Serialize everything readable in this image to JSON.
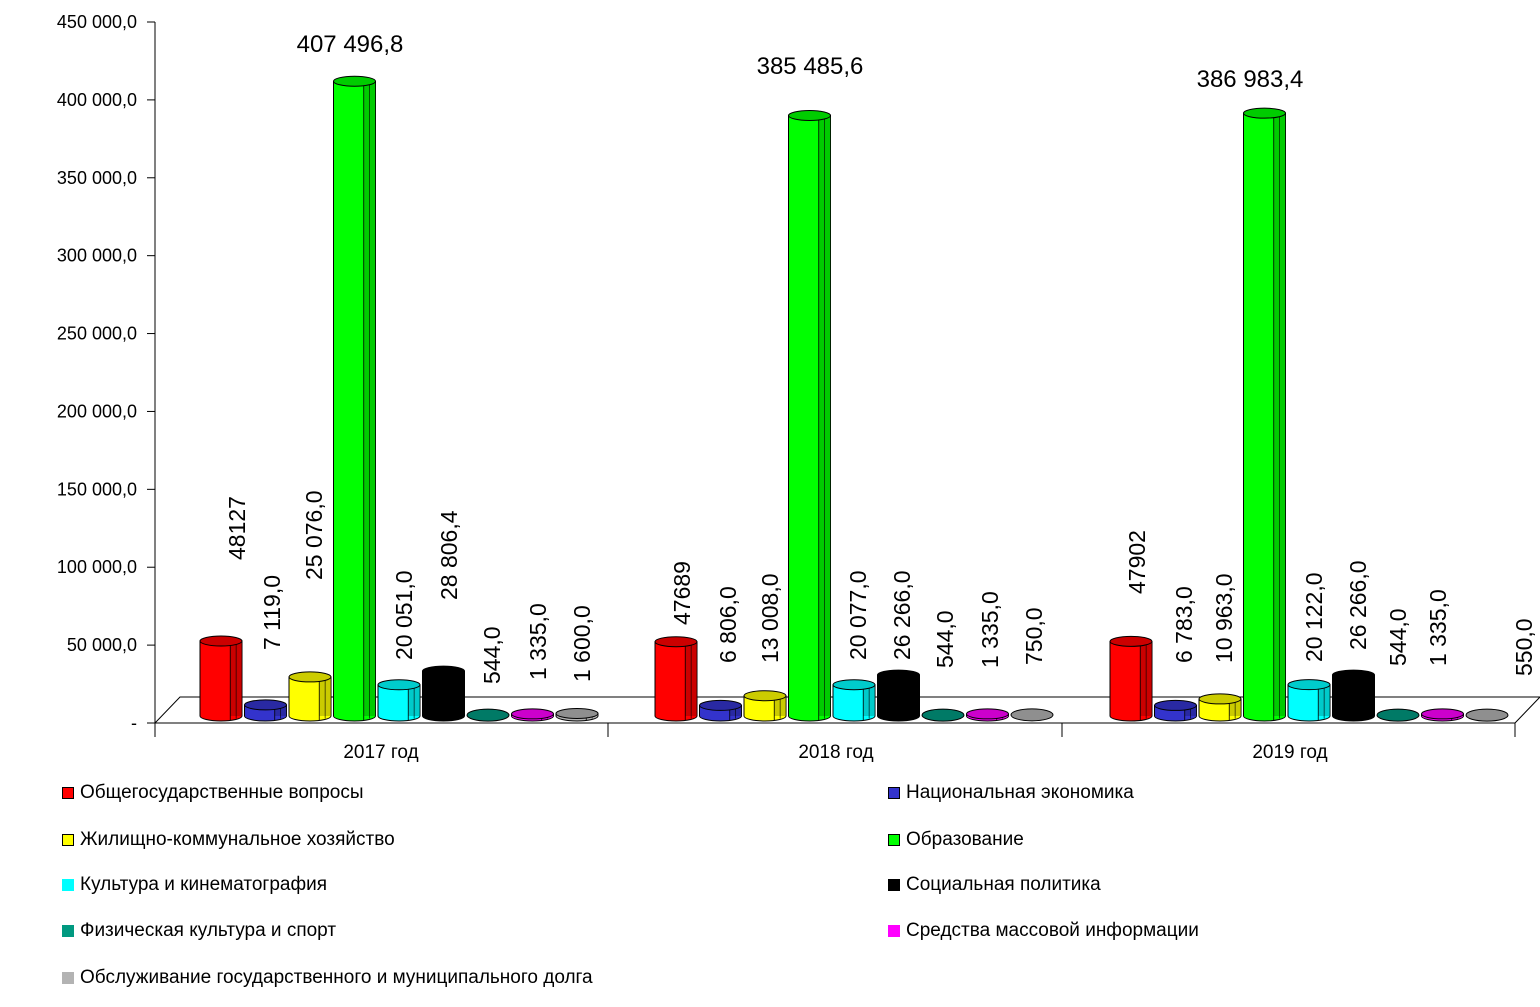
{
  "chart_data": {
    "type": "bar",
    "categories": [
      "2017 год",
      "2018 год",
      "2019 год"
    ],
    "y_ticks": [
      "-",
      "50 000,0",
      "100 000,0",
      "150 000,0",
      "200 000,0",
      "250 000,0",
      "300 000,0",
      "350 000,0",
      "400 000,0",
      "450 000,0"
    ],
    "ylim": [
      0,
      450000
    ],
    "grid": false,
    "legend_position": "bottom",
    "series": [
      {
        "name": "Общегосударственные вопросы",
        "color": "#ff0000",
        "values": [
          48127,
          47689,
          47902
        ],
        "labels": [
          "48127",
          "47689",
          "47902"
        ]
      },
      {
        "name": "Национальная экономика",
        "color": "#3333cc",
        "values": [
          7119,
          6806,
          6783
        ],
        "labels": [
          "7 119,0",
          "6 806,0",
          "6 783,0"
        ]
      },
      {
        "name": "Жилищно-коммунальное хозяйство",
        "color": "#ffff00",
        "values": [
          25076,
          13008,
          10963
        ],
        "labels": [
          "25 076,0",
          "13 008,0",
          "10 963,0"
        ]
      },
      {
        "name": "Образование",
        "color": "#00ff00",
        "values": [
          407496.8,
          385485.6,
          386983.4
        ],
        "labels": [
          "407 496,8",
          "385 485,6",
          "386 983,4"
        ]
      },
      {
        "name": "Культура и кинематография",
        "color": "#00ffff",
        "values": [
          20051,
          20077,
          20122
        ],
        "labels": [
          "20 051,0",
          "20 077,0",
          "20 122,0"
        ]
      },
      {
        "name": "Социальная политика",
        "color": "#000000",
        "values": [
          28806.4,
          26266,
          26266
        ],
        "labels": [
          "28 806,4",
          "26 266,0",
          "26 266,0"
        ]
      },
      {
        "name": "Физическая культура и спорт",
        "color": "#009980",
        "values": [
          544,
          544,
          544
        ],
        "labels": [
          "544,0",
          "544,0",
          "544,0"
        ]
      },
      {
        "name": "Средства массовой информации",
        "color": "#ff00ff",
        "values": [
          1335,
          1335,
          1335
        ],
        "labels": [
          "1 335,0",
          "1 335,0",
          "1 335,0"
        ]
      },
      {
        "name": "Обслуживание государственного и муниципального долга",
        "color": "#b3b3b3",
        "values": [
          1600,
          750,
          550
        ],
        "labels": [
          "1 600,0",
          "750,0",
          "550,0"
        ]
      }
    ]
  }
}
